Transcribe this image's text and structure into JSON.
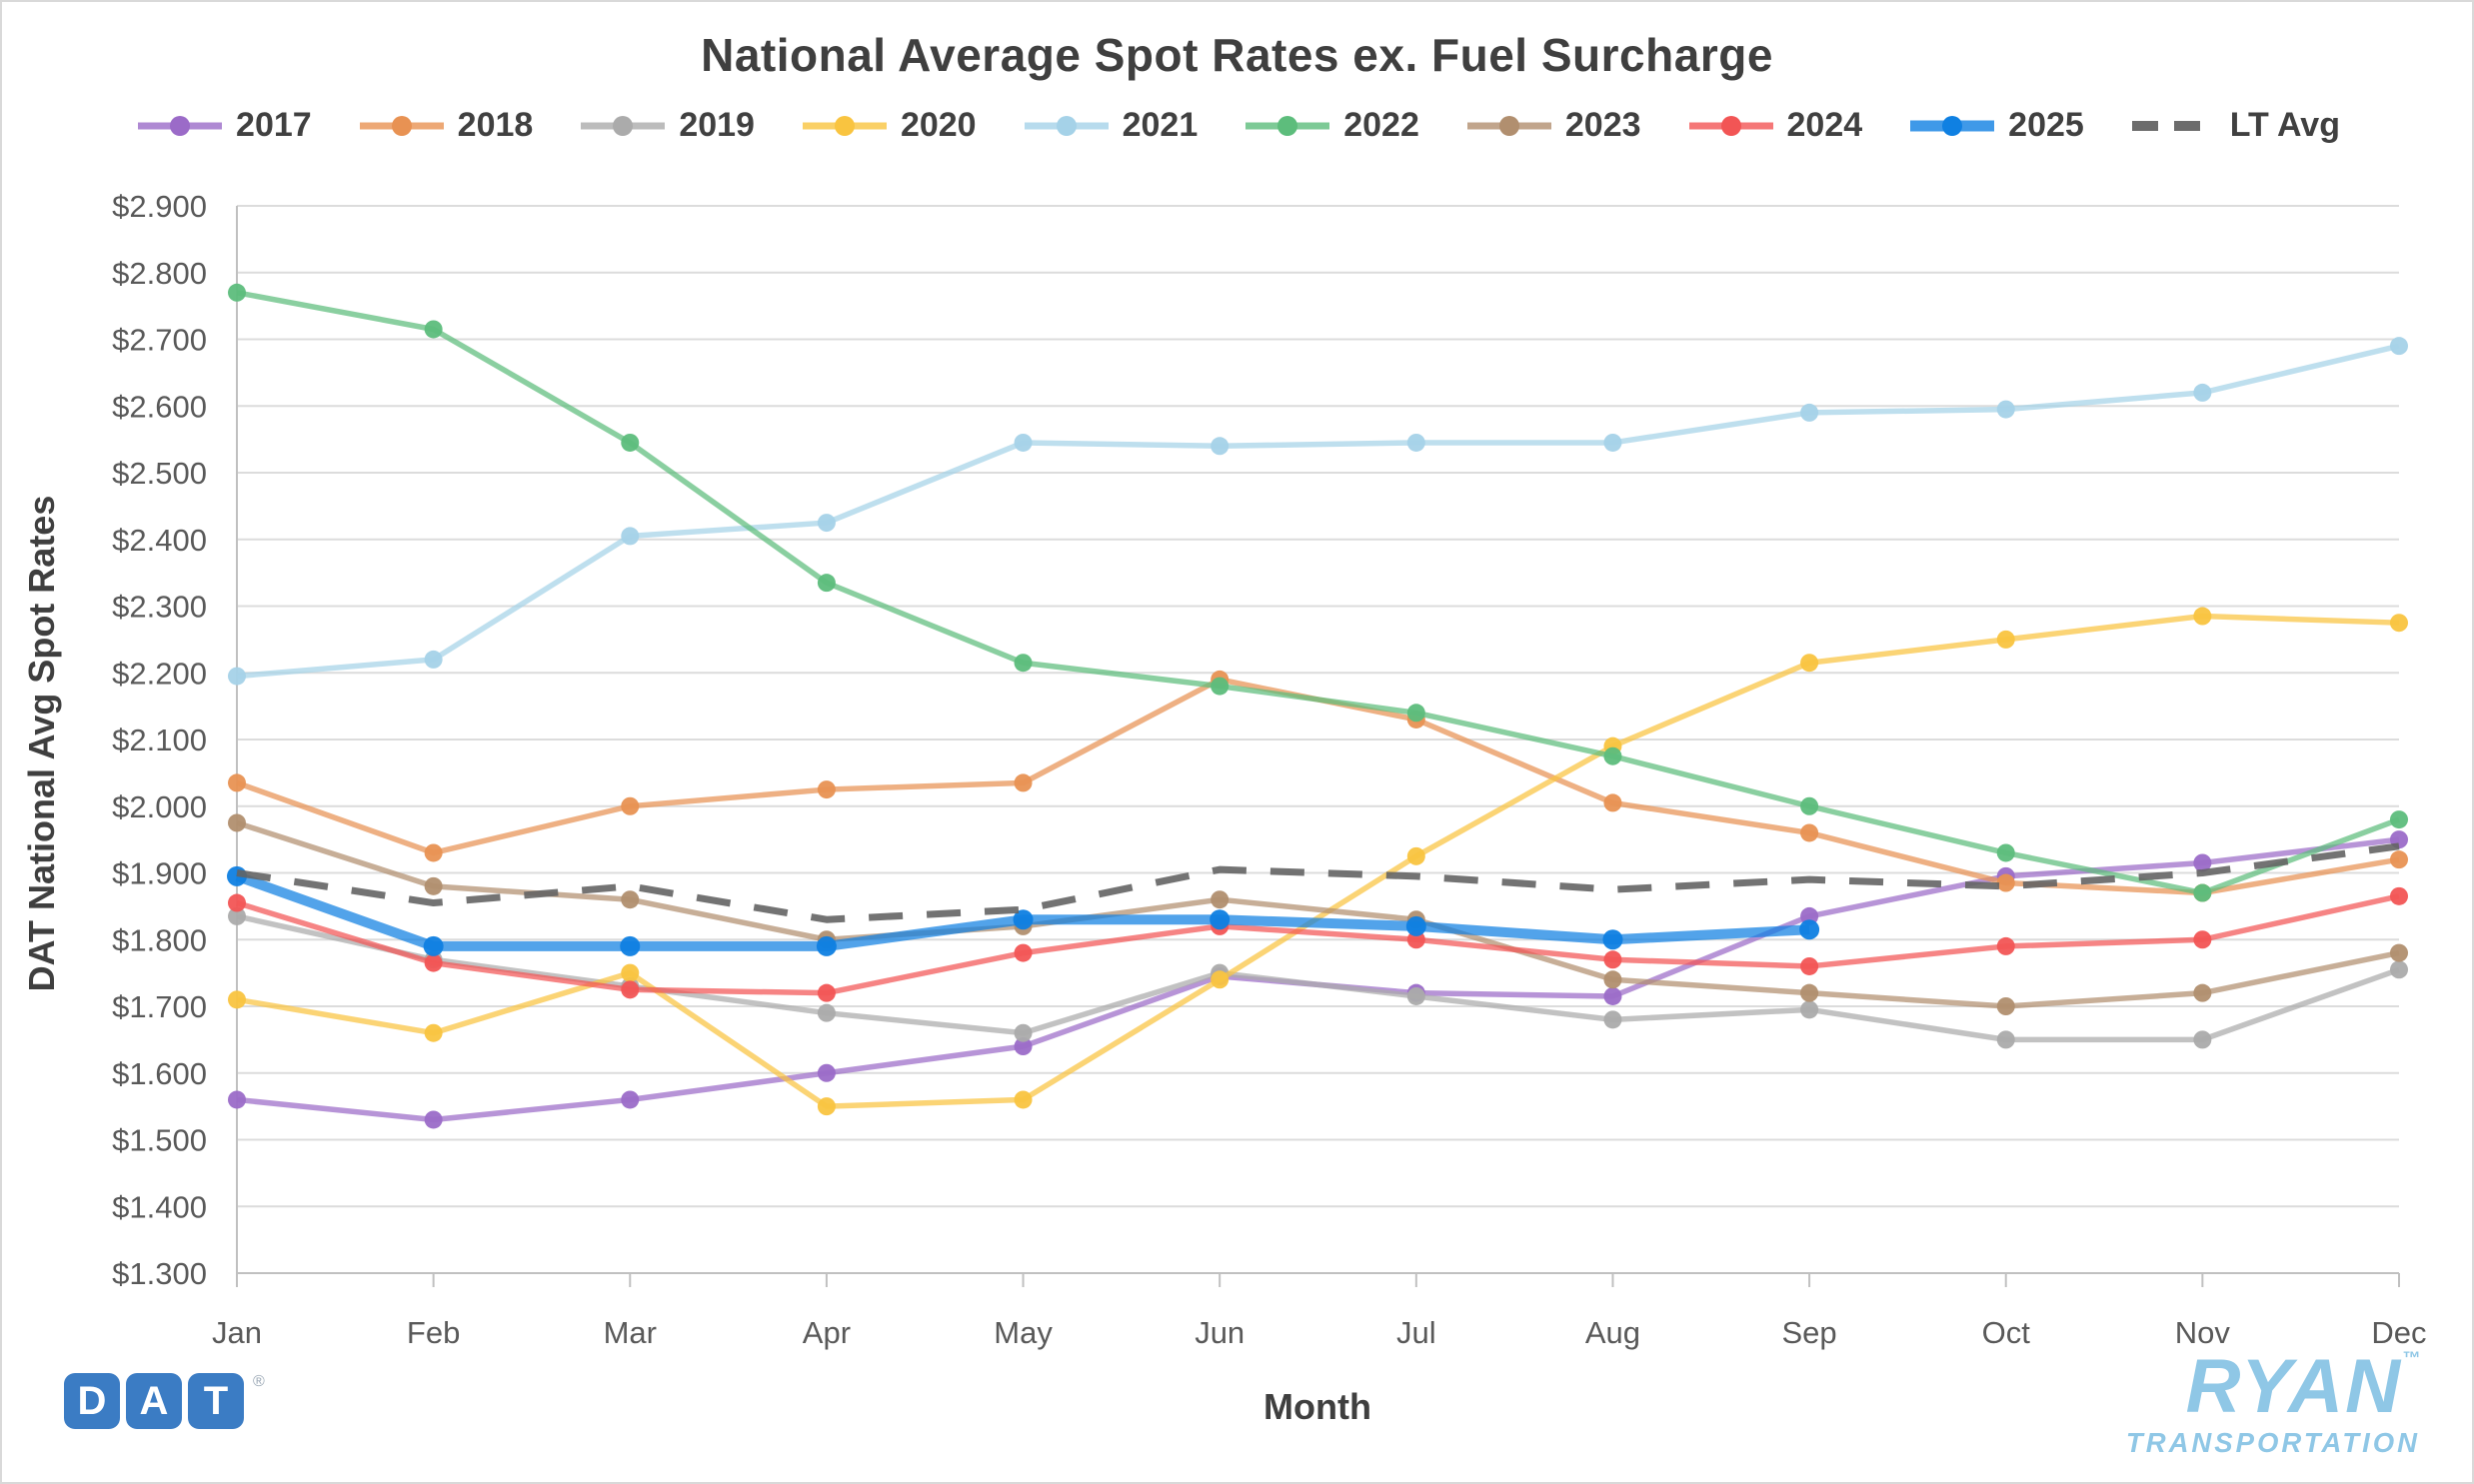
{
  "title": "National Average Spot Rates ex. Fuel Surcharge",
  "axes": {
    "x_title": "Month",
    "y_title": "DAT National Avg Spot Rates",
    "y_tick_labels": [
      "$2.900",
      "$2.800",
      "$2.700",
      "$2.600",
      "$2.500",
      "$2.400",
      "$2.300",
      "$2.200",
      "$2.100",
      "$2.000",
      "$1.900",
      "$1.800",
      "$1.700",
      "$1.600",
      "$1.500",
      "$1.400",
      "$1.300"
    ]
  },
  "colors": {
    "grid": "#dcdcdc",
    "axis_line": "#c0c0c0",
    "tick_text": "#595959",
    "title_text": "#3f3f3f"
  },
  "chart_data": {
    "type": "line",
    "title": "National Average Spot Rates ex. Fuel Surcharge",
    "xlabel": "Month",
    "ylabel": "DAT National Avg Spot Rates",
    "ylim": [
      1.3,
      2.9
    ],
    "ytick_step": 0.1,
    "grid": "horizontal",
    "legend_position": "top",
    "x": [
      "Jan",
      "Feb",
      "Mar",
      "Apr",
      "May",
      "Jun",
      "Jul",
      "Aug",
      "Sep",
      "Oct",
      "Nov",
      "Dec"
    ],
    "series": [
      {
        "name": "2017",
        "color": "#9b6bc8",
        "values": [
          1.56,
          1.53,
          1.56,
          1.6,
          1.64,
          1.745,
          1.72,
          1.715,
          1.835,
          1.895,
          1.915,
          1.95
        ]
      },
      {
        "name": "2018",
        "color": "#e89253",
        "values": [
          2.035,
          1.93,
          2.0,
          2.025,
          2.035,
          2.19,
          2.13,
          2.005,
          1.96,
          1.885,
          1.87,
          1.92
        ]
      },
      {
        "name": "2019",
        "color": "#ababab",
        "values": [
          1.835,
          1.77,
          1.73,
          1.69,
          1.66,
          1.75,
          1.715,
          1.68,
          1.695,
          1.65,
          1.65,
          1.755
        ]
      },
      {
        "name": "2020",
        "color": "#f9c440",
        "values": [
          1.71,
          1.66,
          1.75,
          1.55,
          1.56,
          1.74,
          1.925,
          2.09,
          2.215,
          2.25,
          2.285,
          2.275
        ]
      },
      {
        "name": "2021",
        "color": "#a5d2e8",
        "values": [
          2.195,
          2.22,
          2.405,
          2.425,
          2.545,
          2.54,
          2.545,
          2.545,
          2.59,
          2.595,
          2.62,
          2.69
        ]
      },
      {
        "name": "2022",
        "color": "#5dbd7c",
        "values": [
          2.77,
          2.715,
          2.545,
          2.335,
          2.215,
          2.18,
          2.14,
          2.075,
          2.0,
          1.93,
          1.87,
          1.98
        ]
      },
      {
        "name": "2023",
        "color": "#b18f6f",
        "values": [
          1.975,
          1.88,
          1.86,
          1.8,
          1.82,
          1.86,
          1.83,
          1.74,
          1.72,
          1.7,
          1.72,
          1.78
        ]
      },
      {
        "name": "2024",
        "color": "#f25555",
        "values": [
          1.855,
          1.765,
          1.725,
          1.72,
          1.78,
          1.82,
          1.8,
          1.77,
          1.76,
          1.79,
          1.8,
          1.865
        ]
      },
      {
        "name": "2025",
        "color": "#0f80e2",
        "thick": true,
        "values": [
          1.895,
          1.79,
          1.79,
          1.79,
          1.83,
          1.83,
          1.82,
          1.8,
          1.815,
          null,
          null,
          null
        ]
      },
      {
        "name": "LT Avg",
        "color": "#646464",
        "dashed": true,
        "markers": false,
        "values": [
          1.9,
          1.855,
          1.88,
          1.83,
          1.845,
          1.905,
          1.895,
          1.875,
          1.89,
          1.88,
          1.9,
          1.94
        ]
      }
    ]
  },
  "logos": {
    "dat": {
      "letters": [
        "D",
        "A",
        "T"
      ],
      "registered": "®",
      "square_color": "#3b7cc4"
    },
    "ryan": {
      "name": "RYAN",
      "trademark": "™",
      "subtitle": "TRANSPORTATION",
      "color": "#8fc7e6"
    }
  }
}
